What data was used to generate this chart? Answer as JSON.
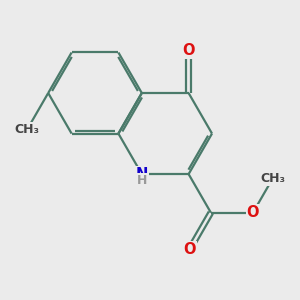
{
  "background": "#ebebeb",
  "bond_color": "#4a7a6a",
  "bond_lw": 1.6,
  "dbo": 0.05,
  "shrink": 0.08,
  "colors": {
    "O": "#dd1111",
    "N": "#1100cc",
    "H": "#999999",
    "C": "#444444"
  },
  "fs": 10.5,
  "fs_small": 9.0,
  "scale": 1.0,
  "fig": [
    3.0,
    3.0
  ],
  "dpi": 100
}
